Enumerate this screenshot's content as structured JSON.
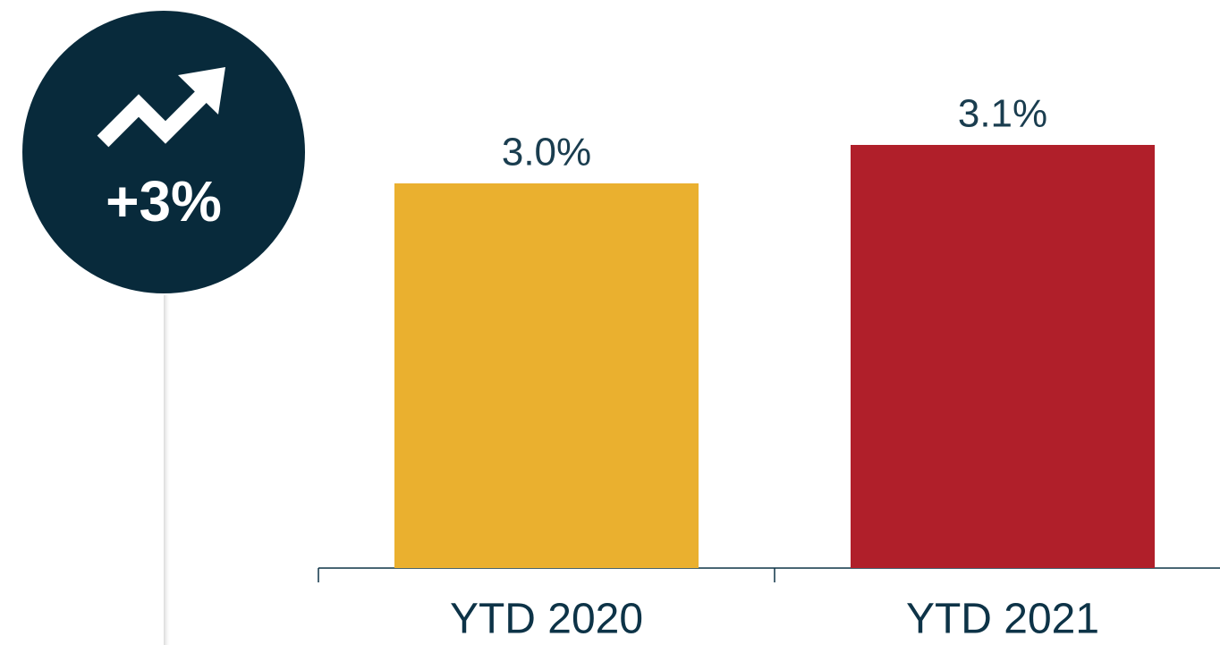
{
  "chart_data": {
    "type": "bar",
    "annotation": "+3%",
    "categories": [
      "YTD 2020",
      "YTD 2021"
    ],
    "values": [
      3.0,
      3.1
    ],
    "value_labels": [
      "3.0%",
      "3.1%"
    ],
    "colors": [
      "#eab02f",
      "#b01f2a"
    ],
    "ylim": [
      2,
      3.5
    ]
  }
}
